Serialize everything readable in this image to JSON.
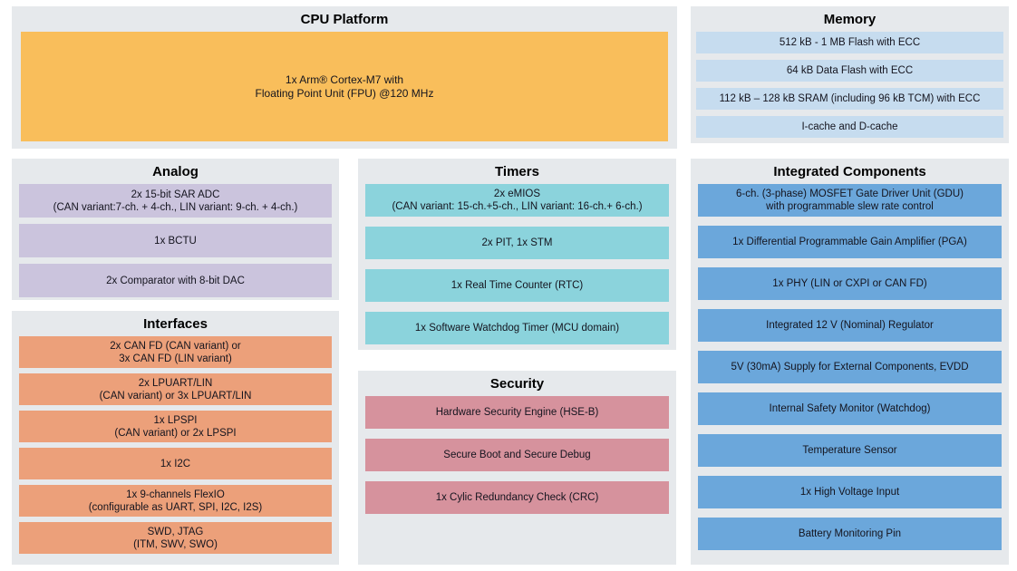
{
  "colors": {
    "page_background": "#ffffff",
    "panel_background": "#e6e9ec",
    "cpu_block": "#f9be5b",
    "memory_rows": "#c6dcef",
    "analog_rows": "#cbc4dd",
    "interfaces_rows": "#eca07a",
    "timers_rows": "#8bd3dc",
    "security_rows": "#d6929d",
    "integrated_rows": "#6ba7db",
    "title_text": "#000000",
    "row_text": "#14141e"
  },
  "panels": {
    "cpu": {
      "title": "CPU Platform",
      "block": {
        "lines": [
          "1x Arm® Cortex-M7 with",
          "Floating Point Unit (FPU) @120 MHz"
        ]
      }
    },
    "memory": {
      "title": "Memory",
      "rows": [
        {
          "lines": [
            "512 kB - 1 MB Flash with ECC"
          ]
        },
        {
          "lines": [
            "64 kB Data Flash with ECC"
          ]
        },
        {
          "lines": [
            "112 kB – 128 kB SRAM (including 96 kB TCM) with ECC"
          ]
        },
        {
          "lines": [
            "I-cache and D-cache"
          ]
        }
      ]
    },
    "analog": {
      "title": "Analog",
      "rows": [
        {
          "lines": [
            "2x 15-bit SAR ADC",
            "(CAN variant:7-ch. + 4-ch., LIN variant: 9-ch. + 4-ch.)"
          ]
        },
        {
          "lines": [
            "1x BCTU"
          ]
        },
        {
          "lines": [
            "2x Comparator with 8-bit DAC"
          ]
        }
      ]
    },
    "interfaces": {
      "title": "Interfaces",
      "rows": [
        {
          "lines": [
            "2x CAN FD (CAN variant) or",
            "3x CAN FD (LIN variant)"
          ]
        },
        {
          "lines": [
            "2x LPUART/LIN",
            "(CAN variant) or 3x LPUART/LIN"
          ]
        },
        {
          "lines": [
            "1x LPSPI",
            "(CAN variant) or 2x LPSPI"
          ]
        },
        {
          "lines": [
            "1x I2C"
          ]
        },
        {
          "lines": [
            "1x 9-channels FlexIO",
            "(configurable as UART, SPI, I2C, I2S)"
          ]
        },
        {
          "lines": [
            "SWD, JTAG",
            "(ITM, SWV, SWO)"
          ]
        }
      ]
    },
    "timers": {
      "title": "Timers",
      "rows": [
        {
          "lines": [
            "2x eMIOS",
            "(CAN variant: 15-ch.+5-ch., LIN variant: 16-ch.+ 6-ch.)"
          ]
        },
        {
          "lines": [
            "2x PIT, 1x STM"
          ]
        },
        {
          "lines": [
            "1x Real Time Counter (RTC)"
          ]
        },
        {
          "lines": [
            "1x Software Watchdog Timer (MCU domain)"
          ]
        }
      ]
    },
    "security": {
      "title": "Security",
      "rows": [
        {
          "lines": [
            "Hardware Security Engine (HSE-B)"
          ]
        },
        {
          "lines": [
            "Secure Boot and Secure Debug"
          ]
        },
        {
          "lines": [
            "1x Cylic Redundancy Check (CRC)"
          ]
        }
      ]
    },
    "integrated": {
      "title": "Integrated Components",
      "rows": [
        {
          "lines": [
            "6-ch. (3-phase) MOSFET Gate Driver Unit (GDU)",
            "with programmable slew rate control"
          ]
        },
        {
          "lines": [
            "1x Differential Programmable Gain Amplifier (PGA)"
          ]
        },
        {
          "lines": [
            "1x PHY (LIN or CXPI or CAN FD)"
          ]
        },
        {
          "lines": [
            "Integrated 12 V (Nominal) Regulator"
          ]
        },
        {
          "lines": [
            "5V (30mA) Supply for External Components, EVDD"
          ]
        },
        {
          "lines": [
            "Internal Safety Monitor (Watchdog)"
          ]
        },
        {
          "lines": [
            "Temperature Sensor"
          ]
        },
        {
          "lines": [
            "1x High Voltage Input"
          ]
        },
        {
          "lines": [
            "Battery Monitoring Pin"
          ]
        }
      ]
    }
  }
}
